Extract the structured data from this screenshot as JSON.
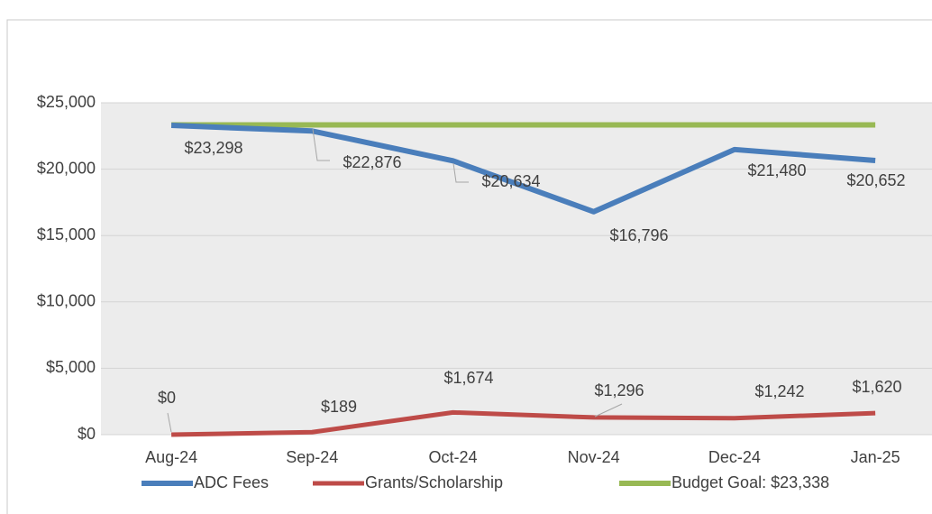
{
  "chart_data": {
    "type": "line",
    "categories": [
      "Aug-24",
      "Sep-24",
      "Oct-24",
      "Nov-24",
      "Dec-24",
      "Jan-25"
    ],
    "series": [
      {
        "name": "ADC Fees",
        "color": "#4a7ebb",
        "values": [
          23298,
          22876,
          20634,
          16796,
          21480,
          20652
        ],
        "value_labels": [
          "$23,298",
          "$22,876",
          "$20,634",
          "$16,796",
          "$21,480",
          "$20,652"
        ]
      },
      {
        "name": "Grants/Scholarship",
        "color": "#be4b48",
        "values": [
          0,
          189,
          1674,
          1296,
          1242,
          1620
        ],
        "value_labels": [
          "$0",
          "$189",
          "$1,674",
          "$1,296",
          "$1,242",
          "$1,620"
        ]
      },
      {
        "name": "Budget Goal: $23,338",
        "color": "#98b954",
        "values": [
          23338,
          23338,
          23338,
          23338,
          23338,
          23338
        ]
      }
    ],
    "ylim": [
      0,
      25000
    ],
    "yticks": [
      {
        "value": 0,
        "label": "$0"
      },
      {
        "value": 5000,
        "label": "$5,000"
      },
      {
        "value": 10000,
        "label": "$10,000"
      },
      {
        "value": 15000,
        "label": "$15,000"
      },
      {
        "value": 20000,
        "label": "$20,000"
      },
      {
        "value": 25000,
        "label": "$25,000"
      }
    ],
    "grid": true,
    "legend": "bottom"
  }
}
